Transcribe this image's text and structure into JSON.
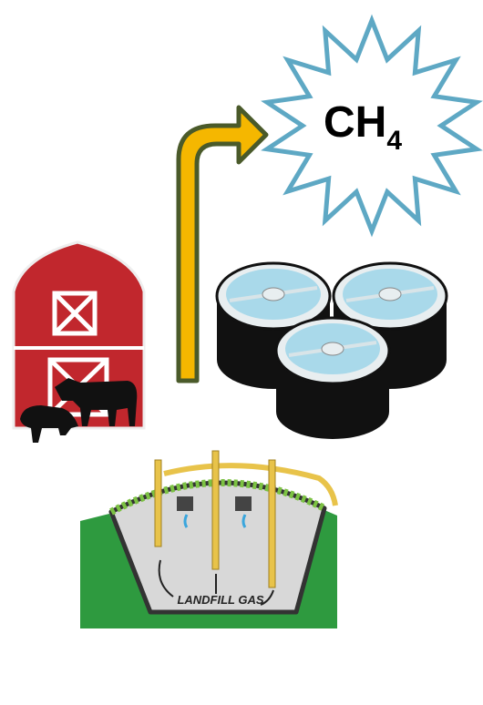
{
  "methane": {
    "formula": "CH",
    "subscript": "4"
  },
  "landfill_label": "LANDFILL GAS"
}
